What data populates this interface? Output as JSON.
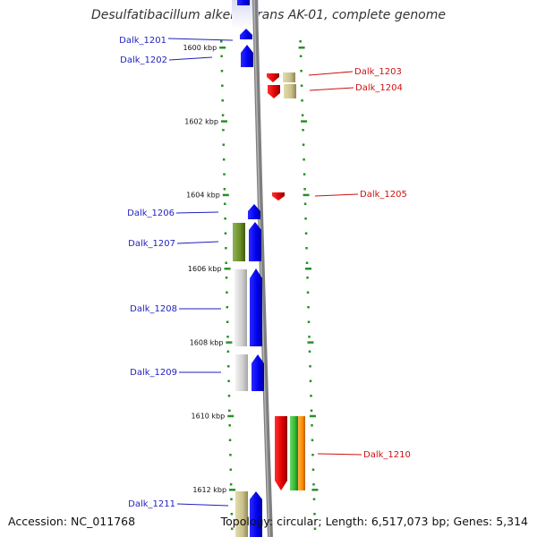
{
  "title": "Desulfatibacillum alkenivorans AK-01, complete genome",
  "accession": "Accession: NC_011768",
  "topology": "Topology: circular; Length: 6,517,073 bp; Genes: 5,314",
  "colors": {
    "forward_label": "#1f1fbf",
    "reverse_label": "#cc1111",
    "forward_gene": "#0000ff",
    "reverse_gene": "#ff0000",
    "tick": "#2a8f2a",
    "backbone": "#7f7f7f"
  },
  "scale_ticks": [
    {
      "kbp": 1600,
      "label": "1600 kbp"
    },
    {
      "kbp": 1602,
      "label": "1602 kbp"
    },
    {
      "kbp": 1604,
      "label": "1604 kbp"
    },
    {
      "kbp": 1606,
      "label": "1606 kbp"
    },
    {
      "kbp": 1608,
      "label": "1608 kbp"
    },
    {
      "kbp": 1610,
      "label": "1610 kbp"
    },
    {
      "kbp": 1612,
      "label": "1612 kbp"
    }
  ],
  "genes": [
    {
      "label": "Dalk_1201",
      "strand": "forward"
    },
    {
      "label": "Dalk_1202",
      "strand": "forward"
    },
    {
      "label": "Dalk_1203",
      "strand": "reverse"
    },
    {
      "label": "Dalk_1204",
      "strand": "reverse"
    },
    {
      "label": "Dalk_1205",
      "strand": "reverse"
    },
    {
      "label": "Dalk_1206",
      "strand": "forward"
    },
    {
      "label": "Dalk_1207",
      "strand": "forward"
    },
    {
      "label": "Dalk_1208",
      "strand": "forward"
    },
    {
      "label": "Dalk_1209",
      "strand": "forward"
    },
    {
      "label": "Dalk_1210",
      "strand": "reverse"
    },
    {
      "label": "Dalk_1211",
      "strand": "forward"
    }
  ]
}
